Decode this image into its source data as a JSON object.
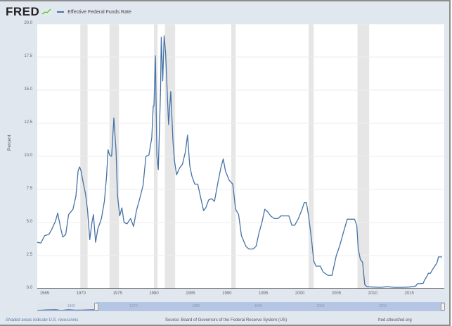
{
  "header": {
    "logo": "FRED",
    "logo_icon": "chart-line-icon",
    "legend_label": "Effective Federal Funds Rate",
    "legend_color": "#4572a7"
  },
  "footer": {
    "recession_note": "Shaded areas indicate U.S. recessions",
    "source": "Source: Board of Governors of the Federal Reserve System (US)",
    "site": "fred.stlouisfed.org"
  },
  "navigator": {
    "labels": [
      "1960",
      "1970",
      "1980",
      "1990",
      "2000",
      "2010"
    ]
  },
  "chart_data": {
    "type": "line",
    "title": "Effective Federal Funds Rate",
    "xlabel": "",
    "ylabel": "Percent",
    "ylim": [
      0,
      20
    ],
    "xlim": [
      1964,
      2019.8
    ],
    "yticks": [
      "0.0",
      "2.5",
      "5.0",
      "7.5",
      "10.0",
      "12.5",
      "15.0",
      "17.5",
      "20.0"
    ],
    "xticks": [
      "1965",
      "1970",
      "1975",
      "1980",
      "1985",
      "1990",
      "1995",
      "2000",
      "2005",
      "2010",
      "2015"
    ],
    "grid": true,
    "legend_position": "top-left",
    "recessions": [
      [
        1969.9,
        1970.9
      ],
      [
        1973.9,
        1975.2
      ],
      [
        1980.0,
        1980.5
      ],
      [
        1981.5,
        1982.9
      ],
      [
        1990.6,
        1991.2
      ],
      [
        2001.2,
        2001.9
      ],
      [
        2007.9,
        2009.5
      ]
    ],
    "series": [
      {
        "name": "Effective Federal Funds Rate",
        "color": "#4572a7",
        "points": [
          [
            1964.0,
            3.5
          ],
          [
            1964.5,
            3.45
          ],
          [
            1965.0,
            4.0
          ],
          [
            1965.6,
            4.1
          ],
          [
            1966.0,
            4.5
          ],
          [
            1966.5,
            5.1
          ],
          [
            1966.8,
            5.7
          ],
          [
            1967.2,
            4.6
          ],
          [
            1967.5,
            3.9
          ],
          [
            1967.9,
            4.1
          ],
          [
            1968.3,
            5.6
          ],
          [
            1968.9,
            6.0
          ],
          [
            1969.3,
            7.0
          ],
          [
            1969.6,
            8.9
          ],
          [
            1969.8,
            9.2
          ],
          [
            1970.0,
            8.9
          ],
          [
            1970.3,
            8.0
          ],
          [
            1970.6,
            7.2
          ],
          [
            1970.9,
            5.9
          ],
          [
            1971.2,
            3.7
          ],
          [
            1971.5,
            5.0
          ],
          [
            1971.7,
            5.6
          ],
          [
            1972.0,
            3.5
          ],
          [
            1972.3,
            4.5
          ],
          [
            1972.8,
            5.3
          ],
          [
            1973.2,
            6.6
          ],
          [
            1973.5,
            8.5
          ],
          [
            1973.7,
            10.5
          ],
          [
            1973.9,
            10.1
          ],
          [
            1974.2,
            10.0
          ],
          [
            1974.5,
            12.9
          ],
          [
            1974.8,
            10.4
          ],
          [
            1975.0,
            7.1
          ],
          [
            1975.3,
            5.5
          ],
          [
            1975.6,
            6.1
          ],
          [
            1975.9,
            5.0
          ],
          [
            1976.3,
            4.9
          ],
          [
            1976.8,
            5.3
          ],
          [
            1977.2,
            4.7
          ],
          [
            1977.6,
            5.9
          ],
          [
            1978.0,
            6.7
          ],
          [
            1978.5,
            7.8
          ],
          [
            1978.9,
            10.0
          ],
          [
            1979.3,
            10.1
          ],
          [
            1979.7,
            11.4
          ],
          [
            1979.9,
            13.8
          ],
          [
            1980.0,
            13.8
          ],
          [
            1980.2,
            17.6
          ],
          [
            1980.4,
            10.0
          ],
          [
            1980.6,
            9.0
          ],
          [
            1980.9,
            15.0
          ],
          [
            1981.0,
            19.0
          ],
          [
            1981.2,
            15.7
          ],
          [
            1981.4,
            19.1
          ],
          [
            1981.6,
            17.8
          ],
          [
            1981.8,
            15.1
          ],
          [
            1982.0,
            12.4
          ],
          [
            1982.3,
            14.9
          ],
          [
            1982.6,
            11.2
          ],
          [
            1982.8,
            9.7
          ],
          [
            1983.1,
            8.6
          ],
          [
            1983.5,
            9.1
          ],
          [
            1983.9,
            9.4
          ],
          [
            1984.3,
            10.3
          ],
          [
            1984.6,
            11.6
          ],
          [
            1984.9,
            9.3
          ],
          [
            1985.2,
            8.5
          ],
          [
            1985.6,
            7.9
          ],
          [
            1986.0,
            7.9
          ],
          [
            1986.4,
            6.9
          ],
          [
            1986.8,
            5.9
          ],
          [
            1987.1,
            6.1
          ],
          [
            1987.5,
            6.7
          ],
          [
            1987.9,
            6.8
          ],
          [
            1988.3,
            6.6
          ],
          [
            1988.8,
            8.1
          ],
          [
            1989.2,
            9.2
          ],
          [
            1989.5,
            9.8
          ],
          [
            1989.8,
            8.9
          ],
          [
            1990.3,
            8.2
          ],
          [
            1990.8,
            7.9
          ],
          [
            1991.2,
            6.0
          ],
          [
            1991.6,
            5.6
          ],
          [
            1992.0,
            4.0
          ],
          [
            1992.6,
            3.2
          ],
          [
            1993.0,
            3.0
          ],
          [
            1993.6,
            3.0
          ],
          [
            1994.0,
            3.2
          ],
          [
            1994.4,
            4.2
          ],
          [
            1994.8,
            5.0
          ],
          [
            1995.2,
            6.0
          ],
          [
            1995.6,
            5.8
          ],
          [
            1996.0,
            5.5
          ],
          [
            1996.5,
            5.3
          ],
          [
            1997.0,
            5.3
          ],
          [
            1997.4,
            5.5
          ],
          [
            1997.9,
            5.5
          ],
          [
            1998.5,
            5.5
          ],
          [
            1998.9,
            4.8
          ],
          [
            1999.3,
            4.8
          ],
          [
            1999.8,
            5.3
          ],
          [
            2000.3,
            6.0
          ],
          [
            2000.6,
            6.5
          ],
          [
            2000.9,
            6.5
          ],
          [
            2001.2,
            5.5
          ],
          [
            2001.6,
            3.7
          ],
          [
            2001.9,
            2.1
          ],
          [
            2002.2,
            1.7
          ],
          [
            2002.8,
            1.7
          ],
          [
            2003.2,
            1.25
          ],
          [
            2003.9,
            1.0
          ],
          [
            2004.4,
            1.0
          ],
          [
            2005.0,
            2.5
          ],
          [
            2005.5,
            3.3
          ],
          [
            2006.0,
            4.3
          ],
          [
            2006.5,
            5.25
          ],
          [
            2007.5,
            5.25
          ],
          [
            2007.8,
            4.8
          ],
          [
            2008.0,
            3.0
          ],
          [
            2008.3,
            2.2
          ],
          [
            2008.6,
            2.0
          ],
          [
            2008.9,
            0.3
          ],
          [
            2009.2,
            0.15
          ],
          [
            2010.0,
            0.12
          ],
          [
            2011.0,
            0.1
          ],
          [
            2012.0,
            0.15
          ],
          [
            2013.0,
            0.1
          ],
          [
            2014.0,
            0.1
          ],
          [
            2015.0,
            0.12
          ],
          [
            2015.9,
            0.2
          ],
          [
            2016.1,
            0.37
          ],
          [
            2016.9,
            0.4
          ],
          [
            2017.1,
            0.66
          ],
          [
            2017.4,
            0.91
          ],
          [
            2017.6,
            1.16
          ],
          [
            2017.9,
            1.16
          ],
          [
            2018.2,
            1.45
          ],
          [
            2018.5,
            1.7
          ],
          [
            2018.8,
            1.95
          ],
          [
            2019.0,
            2.4
          ],
          [
            2019.5,
            2.4
          ]
        ]
      }
    ]
  }
}
